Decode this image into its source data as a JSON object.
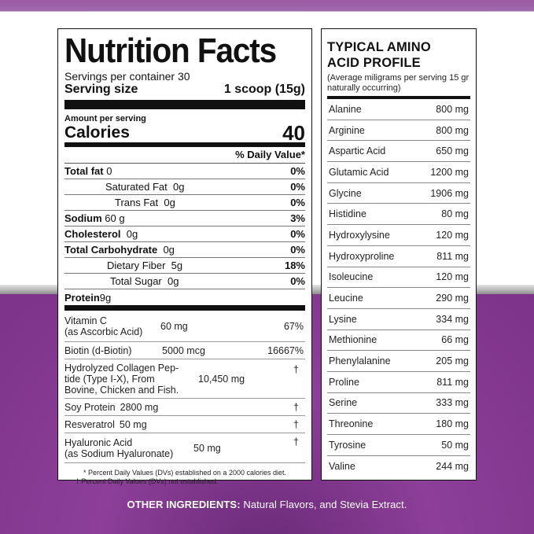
{
  "nutrition": {
    "title": "Nutrition Facts",
    "servings": "Servings per container 30",
    "serving_size_label": "Serving size",
    "serving_size_value": "1 scoop (15g)",
    "amount_per_serving": "Amount per serving",
    "calories_label": "Calories",
    "calories_value": "40",
    "dv_header": "% Daily Value*",
    "rows": [
      {
        "label": "Total fat",
        "amount": "0",
        "pct": "0%"
      },
      {
        "label": "Saturated Fat",
        "amount": "0g",
        "pct": "0%"
      },
      {
        "label": "Trans Fat",
        "amount": "0g",
        "pct": "0%"
      },
      {
        "label": "Sodium",
        "amount": "60 g",
        "pct": "3%"
      },
      {
        "label": "Cholesterol",
        "amount": "0g",
        "pct": "0%"
      },
      {
        "label": "Total Carbohydrate",
        "amount": "0g",
        "pct": "0%"
      },
      {
        "label": "Dietary Fiber",
        "amount": "5g",
        "pct": "18%"
      },
      {
        "label": "Total Sugar",
        "amount": "0g",
        "pct": "0%"
      }
    ],
    "protein_label": "Protein",
    "protein_amount": "9g",
    "extras": [
      {
        "name": "Vitamin C\n(as Ascorbic Acid)",
        "amount": "60 mg",
        "dv": "67%"
      },
      {
        "name": "Biotin (d-Biotin)",
        "amount": "5000 mcg",
        "dv": "16667%"
      },
      {
        "name": "Hydrolyzed Collagen Pep-\ntide (Type I-X), From\nBovine, Chicken and Fish.",
        "amount": "10,450 mg",
        "dv": "†"
      },
      {
        "name": "Soy Protein",
        "amount": "2800 mg",
        "dv": "†"
      },
      {
        "name": "Resveratrol",
        "amount": "50 mg",
        "dv": "†"
      },
      {
        "name": "Hyaluronic Acid\n(as Sodium Hyaluronate)",
        "amount": "50 mg",
        "dv": "†"
      }
    ],
    "footnote_1": "* Percent Daily Values (DVs) established on a 2000 calories diet.",
    "footnote_2": "† Percent Daily Values (DVs) not established."
  },
  "amino": {
    "title_1": "TYPICAL AMINO",
    "title_2": "ACID PROFILE",
    "subtitle": "(Average miligrams per serving 15 gr naturally occurring)",
    "rows": [
      {
        "name": "Alanine",
        "value": "800 mg"
      },
      {
        "name": "Arginine",
        "value": "800 mg"
      },
      {
        "name": "Aspartic Acid",
        "value": "650 mg"
      },
      {
        "name": "Glutamic Acid",
        "value": "1200 mg"
      },
      {
        "name": "Glycine",
        "value": "1906 mg"
      },
      {
        "name": "Histidine",
        "value": "80 mg"
      },
      {
        "name": "Hydroxylysine",
        "value": "120 mg"
      },
      {
        "name": "Hydroxyproline",
        "value": "811 mg"
      },
      {
        "name": "Isoleucine",
        "value": "120 mg"
      },
      {
        "name": "Leucine",
        "value": "290 mg"
      },
      {
        "name": "Lysine",
        "value": "334 mg"
      },
      {
        "name": "Methionine",
        "value": "66 mg"
      },
      {
        "name": "Phenylalanine",
        "value": "205 mg"
      },
      {
        "name": "Proline",
        "value": "811 mg"
      },
      {
        "name": "Serine",
        "value": "333 mg"
      },
      {
        "name": "Threonine",
        "value": "180 mg"
      },
      {
        "name": "Tyrosine",
        "value": "50 mg"
      },
      {
        "name": "Valine",
        "value": "244 mg"
      }
    ]
  },
  "other": {
    "label": "OTHER INGREDIENTS:",
    "text": "Natural Flavors, and Stevia Extract."
  },
  "colors": {
    "purple": "#8c3f98",
    "black": "#111111"
  }
}
